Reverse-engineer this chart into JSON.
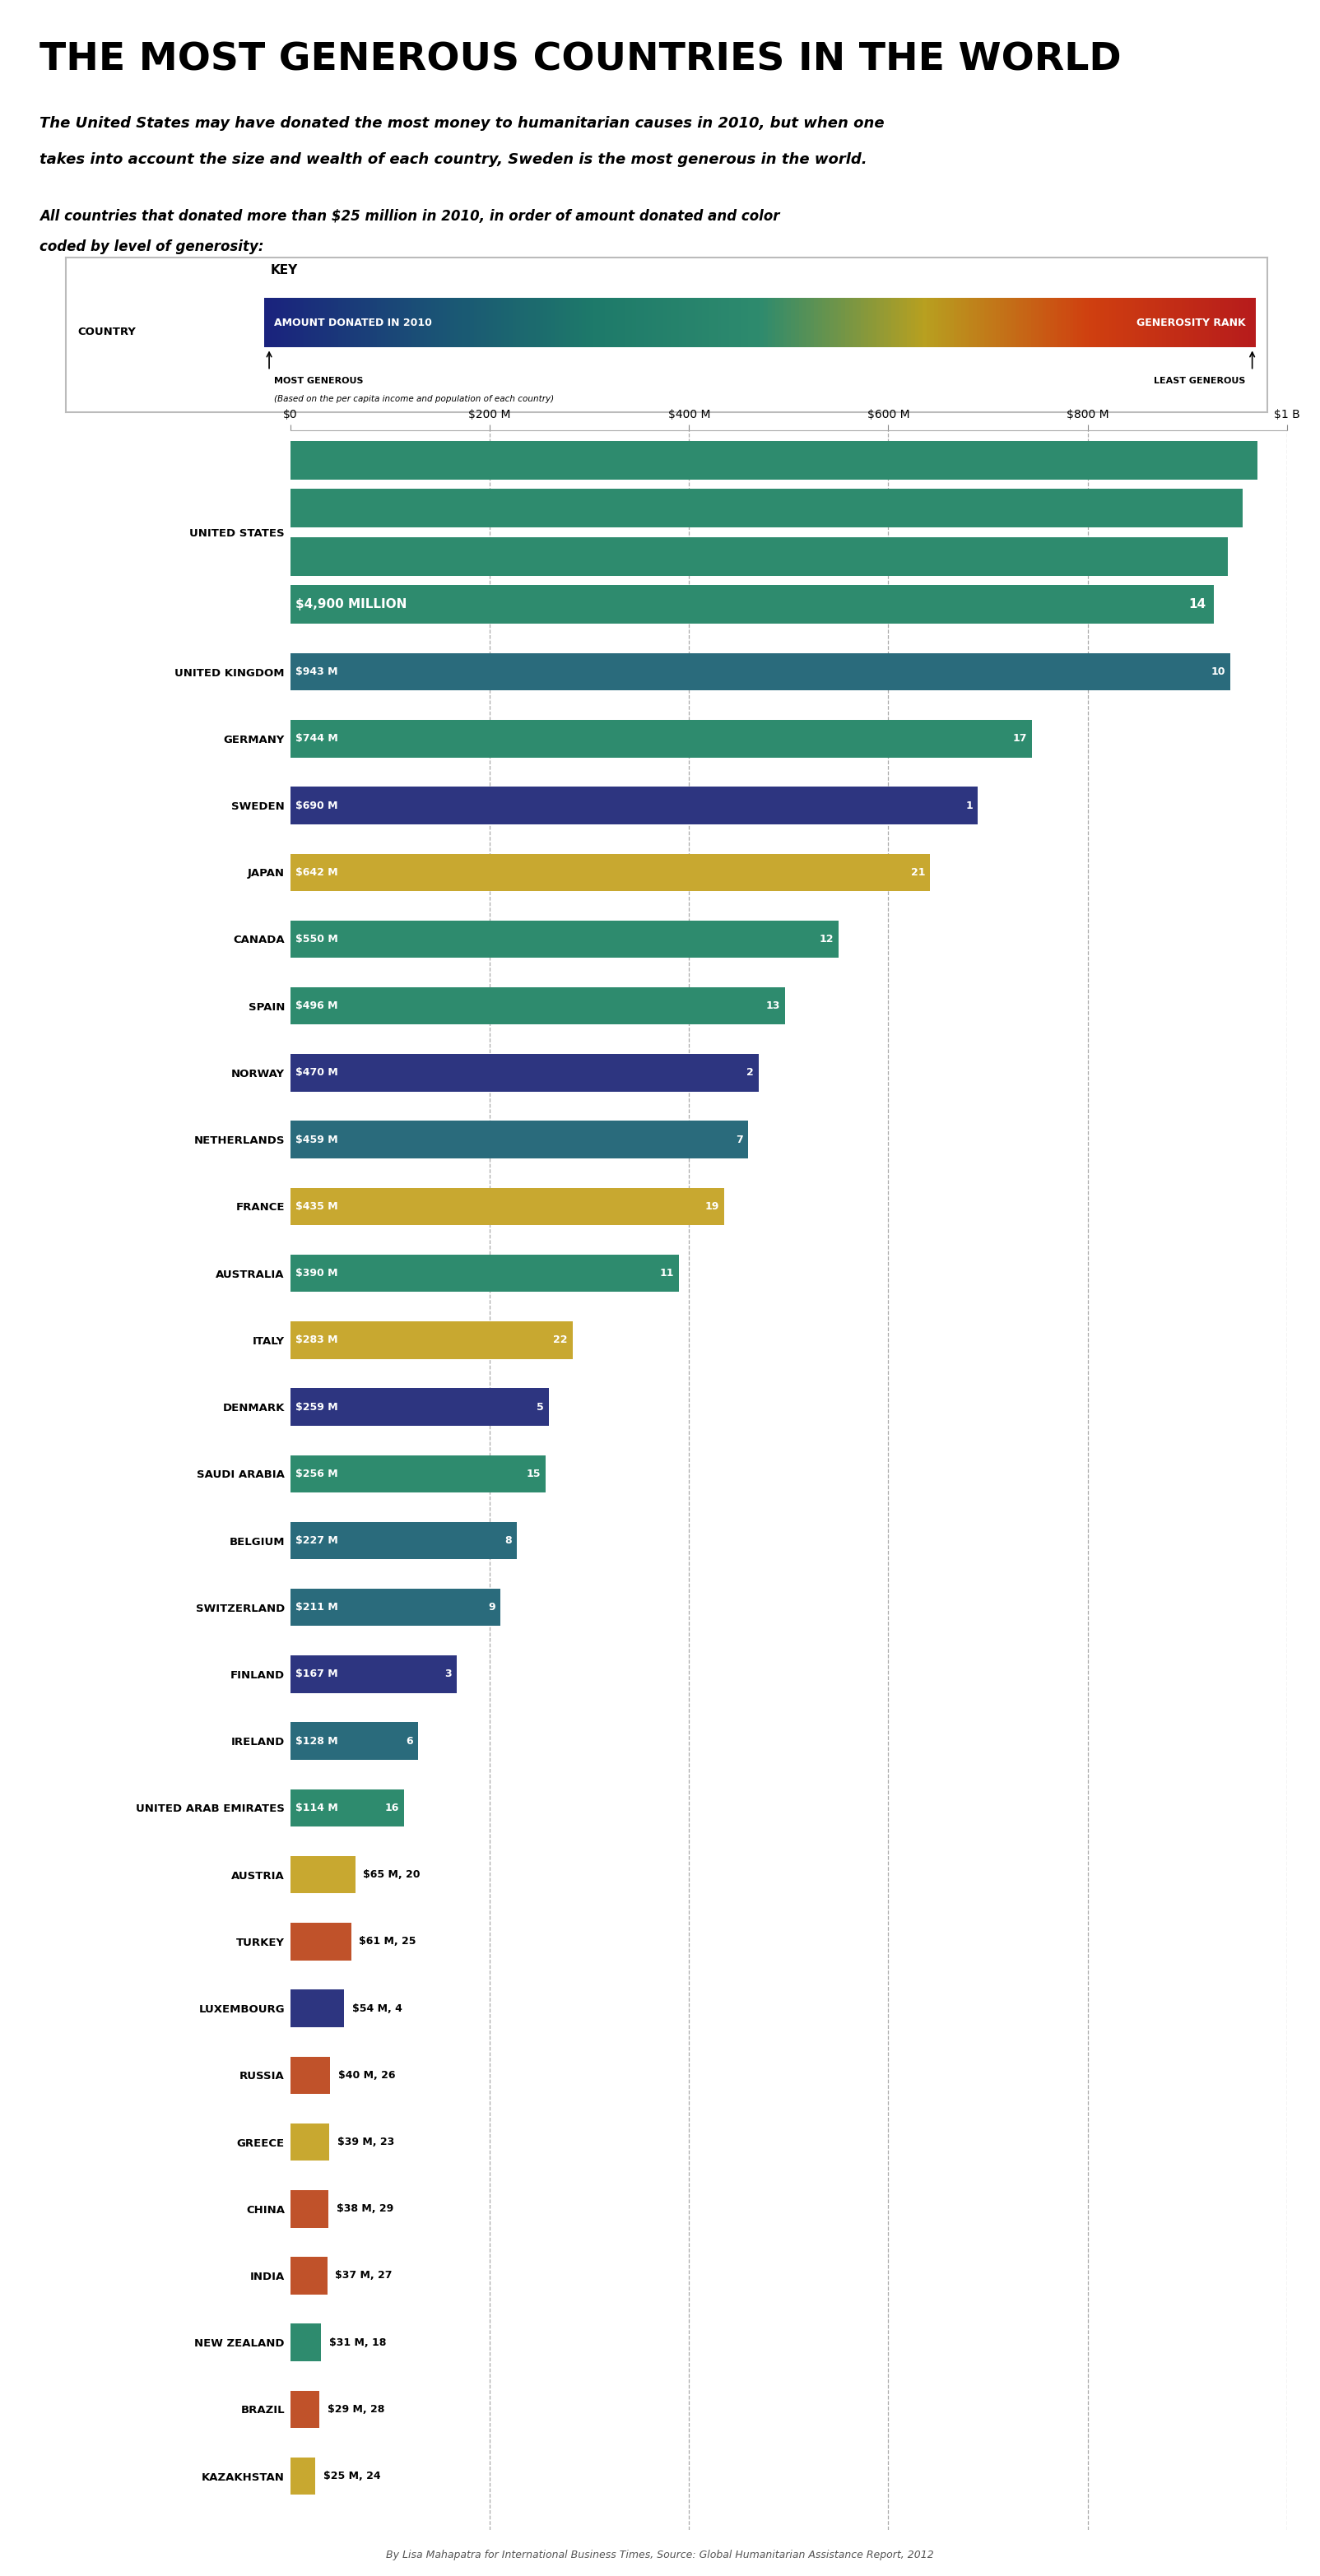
{
  "title": "THE MOST GENEROUS COUNTRIES IN THE WORLD",
  "subtitle1": "The United States may have donated the most money to humanitarian causes in 2010, but when one",
  "subtitle2": "takes into account the size and wealth of each country, Sweden is the most generous in the world.",
  "subtitle3": "All countries that donated more than $25 million in 2010, in order of amount donated and color",
  "subtitle4": "coded by level of generosity:",
  "countries": [
    "UNITED STATES",
    "UNITED KINGDOM",
    "GERMANY",
    "SWEDEN",
    "JAPAN",
    "CANADA",
    "SPAIN",
    "NORWAY",
    "NETHERLANDS",
    "FRANCE",
    "AUSTRALIA",
    "ITALY",
    "DENMARK",
    "SAUDI ARABIA",
    "BELGIUM",
    "SWITZERLAND",
    "FINLAND",
    "IRELAND",
    "UNITED ARAB EMIRATES",
    "AUSTRIA",
    "TURKEY",
    "LUXEMBOURG",
    "RUSSIA",
    "GREECE",
    "CHINA",
    "INDIA",
    "NEW ZEALAND",
    "BRAZIL",
    "KAZAKHSTAN"
  ],
  "values": [
    4900,
    943,
    744,
    690,
    642,
    550,
    496,
    470,
    459,
    435,
    390,
    283,
    259,
    256,
    227,
    211,
    167,
    128,
    114,
    65,
    61,
    54,
    40,
    39,
    38,
    37,
    31,
    29,
    25
  ],
  "ranks": [
    14,
    10,
    17,
    1,
    21,
    12,
    13,
    2,
    7,
    19,
    11,
    22,
    5,
    15,
    8,
    9,
    3,
    6,
    16,
    20,
    25,
    4,
    26,
    23,
    29,
    27,
    18,
    28,
    24
  ],
  "amount_labels": [
    "$4,900 MILLION",
    "$943 M",
    "$744 M",
    "$690 M",
    "$642 M",
    "$550 M",
    "$496 M",
    "$470 M",
    "$459 M",
    "$435 M",
    "$390 M",
    "$283 M",
    "$259 M",
    "$256 M",
    "$227 M",
    "$211 M",
    "$167 M",
    "$128 M",
    "$114 M",
    "$65 M, 20",
    "$61 M, 25",
    "$54 M, 4",
    "$40 M, 26",
    "$39 M, 23",
    "$38 M, 29",
    "$37 M, 27",
    "$31 M, 18",
    "$29 M, 28",
    "$25 M, 24"
  ],
  "bar_colors": [
    "#2e8b6e",
    "#2a6b7c",
    "#2e8b6e",
    "#2d3580",
    "#c8a830",
    "#2e8b6e",
    "#2e8b6e",
    "#2d3580",
    "#2a6b7c",
    "#c8a830",
    "#2e8b6e",
    "#c8a830",
    "#2d3580",
    "#2e8b6e",
    "#2a6b7c",
    "#2a6b7c",
    "#2d3580",
    "#2a6b7c",
    "#2e8b6e",
    "#c8a830",
    "#c0522a",
    "#2d3580",
    "#c0522a",
    "#c8a830",
    "#c0522a",
    "#c0522a",
    "#2e8b6e",
    "#c0522a",
    "#c8a830"
  ],
  "xlim_max": 1000,
  "xtick_positions": [
    0,
    200,
    400,
    600,
    800,
    1000
  ],
  "xtick_labels": [
    "$0",
    "$200 M",
    "$400 M",
    "$600 M",
    "$800 M",
    "$1 B"
  ],
  "gradient_colors": [
    "#1a237e",
    "#1a5276",
    "#1e7a6a",
    "#2e8b6e",
    "#b8a020",
    "#d04010",
    "#b71c1c"
  ],
  "footer": "By Lisa Mahapatra for International Business Times, Source: Global Humanitarian Assistance Report, 2012",
  "bg_color": "#ffffff",
  "us_display_val": 970,
  "us_num_bars": 4
}
